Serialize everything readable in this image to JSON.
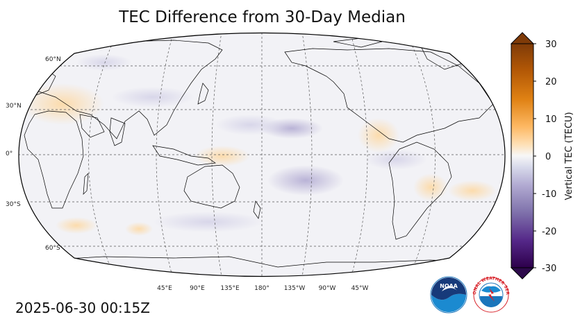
{
  "title": "TEC Difference from 30-Day Median",
  "timestamp": "2025-06-30 00:15Z",
  "map": {
    "projection": "robinson",
    "central_longitude": 180,
    "lat_labels": [
      "60°N",
      "30°N",
      "0°",
      "30°S",
      "60°S"
    ],
    "lon_labels": [
      "45°E",
      "90°E",
      "135°E",
      "180°",
      "135°W",
      "90°W",
      "45°W"
    ],
    "gridlines": "dashed",
    "ocean_color": "#f2f2f6"
  },
  "colorbar": {
    "label": "Vertical TEC (TECU)",
    "ticks": [
      "30",
      "20",
      "10",
      "0",
      "-10",
      "-20",
      "-30"
    ],
    "range": [
      -30,
      30
    ],
    "colormap": "PuOr_r",
    "low_color": "#2d0a4b",
    "high_color": "#7f3b08",
    "extend": "both"
  },
  "logos": {
    "noaa": "NOAA",
    "nws": "NATIONAL WEATHER SERVICE"
  }
}
